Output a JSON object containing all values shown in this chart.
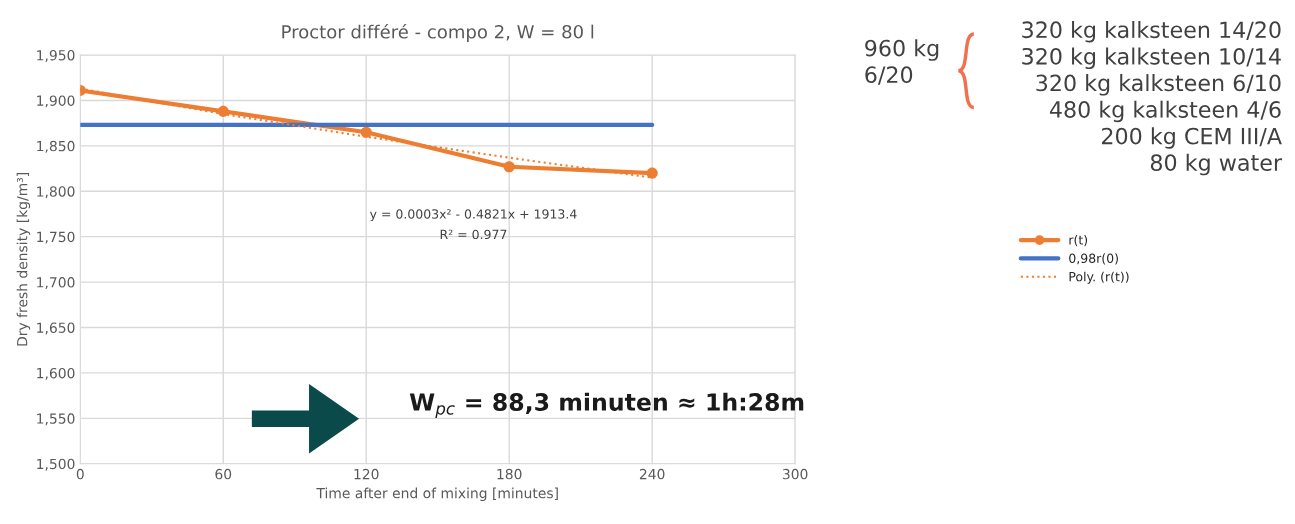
{
  "chart_data": {
    "type": "line",
    "title": "Proctor différé - compo 2, W = 80 l",
    "xlabel": "Time after end of mixing [minutes]",
    "ylabel": "Dry fresh density [kg/m³]",
    "series": [
      {
        "name": "r(t)",
        "color": "#ed7d31",
        "x": [
          0,
          60,
          120,
          180,
          240
        ],
        "values": [
          1911,
          1888,
          1865,
          1827,
          1820
        ],
        "marker": "circle",
        "line_style": "solid"
      },
      {
        "name": "0,98r(0)",
        "color": "#4472c4",
        "x": [
          0,
          240
        ],
        "values": [
          1873,
          1873
        ],
        "marker": "none",
        "line_style": "solid"
      },
      {
        "name": "Poly. (r(t))",
        "color": "#ed7d31",
        "x": [
          0,
          60,
          120,
          180,
          240
        ],
        "values": [
          1913,
          1885,
          1860,
          1837,
          1815
        ],
        "marker": "none",
        "line_style": "dotted"
      }
    ],
    "xlim": [
      0,
      300
    ],
    "xticks": [
      0,
      60,
      120,
      180,
      240,
      300
    ],
    "ylim": [
      1500,
      1950
    ],
    "yticks": [
      {
        "value": 1500,
        "label": "1,500"
      },
      {
        "value": 1550,
        "label": "1,550"
      },
      {
        "value": 1600,
        "label": "1,600"
      },
      {
        "value": 1650,
        "label": "1,650"
      },
      {
        "value": 1700,
        "label": "1,700"
      },
      {
        "value": 1750,
        "label": "1,750"
      },
      {
        "value": 1800,
        "label": "1,800"
      },
      {
        "value": 1850,
        "label": "1,850"
      },
      {
        "value": 1900,
        "label": "1,900"
      },
      {
        "value": 1950,
        "label": "1,950"
      }
    ],
    "grid": true,
    "legend": "right",
    "annotations": [
      "y = 0.0003x² - 0.4821x + 1913.4",
      "R² = 0.977",
      "W$_{pc}$ = 88,3 minuten ≈ 1h:28m",
      "960 kg\n6/20",
      "320 kg kalksteen 14/20\n320 kg kalksteen 10/14\n320 kg kalksteen 6/10\n480 kg kalksteen 4/6\n200 kg CEM III/A\n80 kg water"
    ]
  }
}
